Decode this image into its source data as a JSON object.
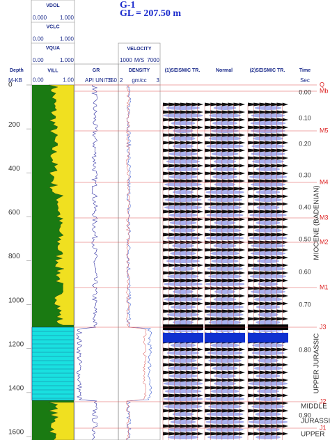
{
  "header": {
    "title": "G-1",
    "subtitle": "GL = 207.50 m"
  },
  "curve_headers": [
    {
      "name": "VDOL",
      "min": "0.000",
      "max": "1.000"
    },
    {
      "name": "VCLC",
      "min": "0.00",
      "max": "1.000"
    },
    {
      "name": "VQUA",
      "min": "0.00",
      "max": "1.000"
    },
    {
      "name": "VILL",
      "min": "0.00",
      "max": "1.00"
    }
  ],
  "velocity": {
    "name": "VELOCITY",
    "min": "1000",
    "unit": "M/S",
    "max": "7000"
  },
  "columns": {
    "depth": "Depth",
    "depth_unit": "M-KB",
    "gr": "GR",
    "gr_unit": "API UNITS",
    "gr_max": "150",
    "density": "DENSITY",
    "density_min": "2",
    "density_unit": "gm/cc",
    "density_max": "3",
    "seismic1": "(1)SEISMIC TR.",
    "normal": "Normal",
    "seismic2": "(2)SEISMIC TR.",
    "time": "Time",
    "time_unit": "Sec"
  },
  "depth_ticks": [
    0,
    200,
    400,
    600,
    800,
    1000,
    1200,
    1400,
    1600
  ],
  "time_ticks": [
    "0.00",
    "0.10",
    "0.20",
    "0.30",
    "0.40",
    "0.50",
    "0.60",
    "0.70",
    "0.80",
    "0.90"
  ],
  "horizons": [
    "Q",
    "Mb",
    "M5",
    "M4",
    "M3",
    "M2",
    "M1",
    "J3",
    "J2",
    "J1"
  ],
  "units": [
    "MIOCENE (BADENIAN)",
    "UPPER JURASSIC",
    "MIDDLE",
    "JURASSIC",
    "UPPER"
  ]
}
